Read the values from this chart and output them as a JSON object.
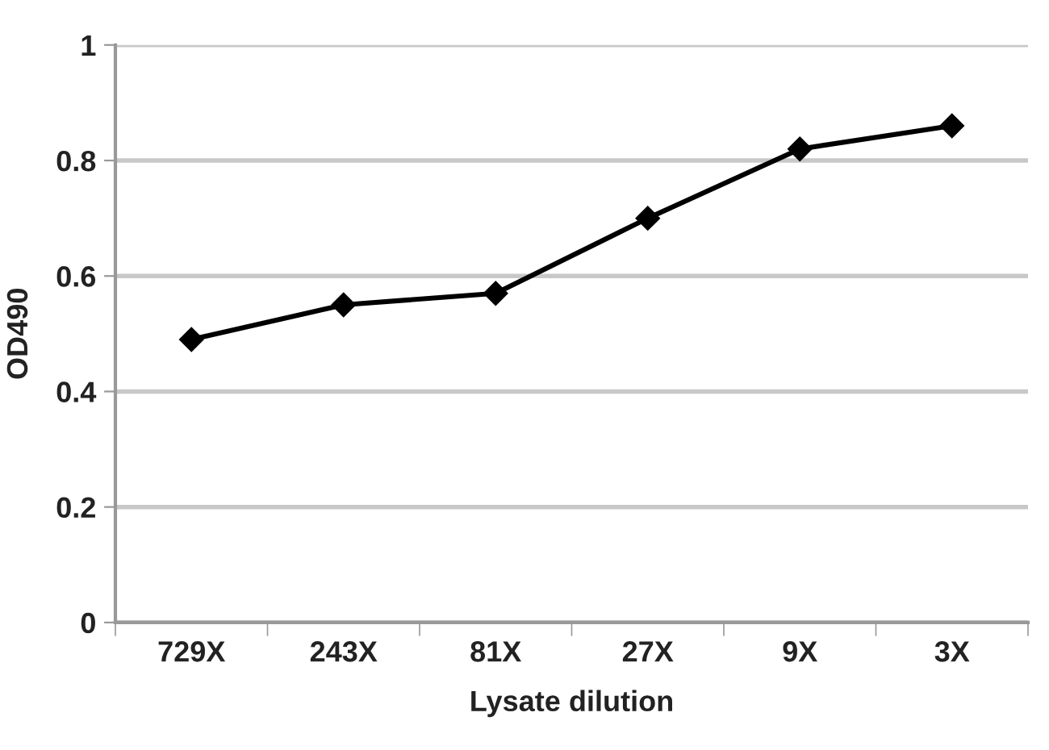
{
  "chart_data": {
    "type": "line",
    "xlabel": "Lysate dilution",
    "ylabel": "OD490",
    "categories": [
      "729X",
      "243X",
      "81X",
      "27X",
      "9X",
      "3X"
    ],
    "series": [
      {
        "color": "#000000",
        "values": [
          0.49,
          0.55,
          0.57,
          0.7,
          0.82,
          0.86
        ]
      }
    ],
    "ylim": [
      0,
      1
    ],
    "yticks": [
      0,
      0.2,
      0.4,
      0.6,
      0.8,
      1
    ],
    "grid": "y",
    "marker": "diamond",
    "line_style": "solid"
  }
}
